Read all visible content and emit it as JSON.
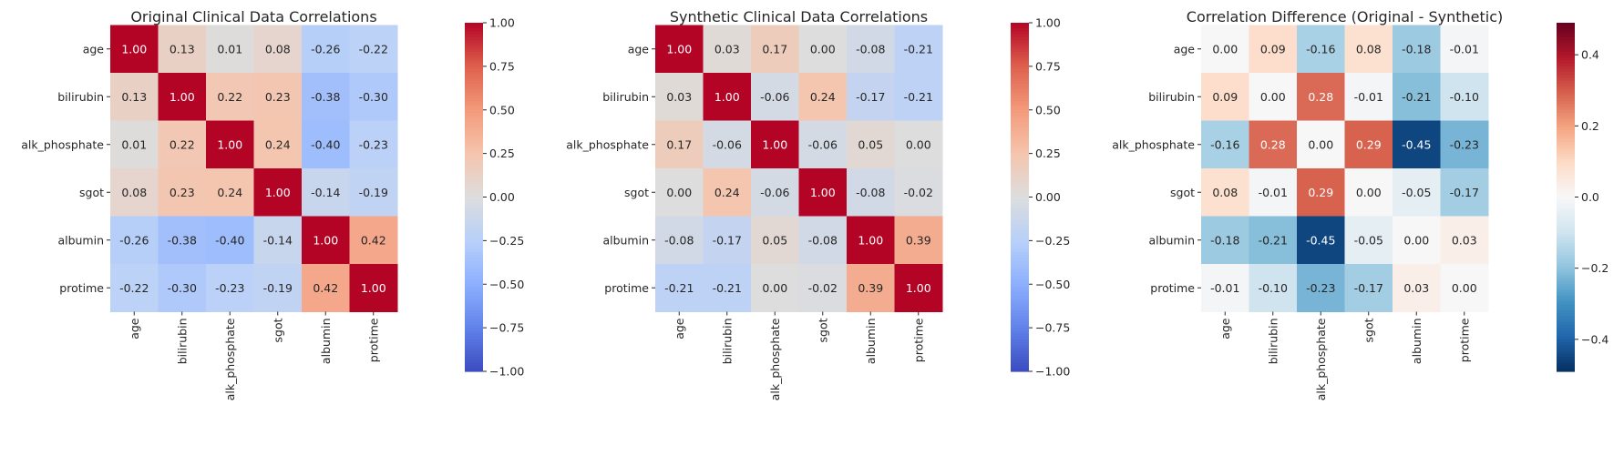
{
  "chart_data": [
    {
      "type": "heatmap",
      "title": "Original Clinical Data Correlations",
      "xlabel": "",
      "ylabel": "",
      "row_labels": [
        "age",
        "bilirubin",
        "alk_phosphate",
        "sgot",
        "albumin",
        "protime"
      ],
      "col_labels": [
        "age",
        "bilirubin",
        "alk_phosphate",
        "sgot",
        "albumin",
        "protime"
      ],
      "values": [
        [
          1.0,
          0.13,
          0.01,
          0.08,
          -0.26,
          -0.22
        ],
        [
          0.13,
          1.0,
          0.22,
          0.23,
          -0.38,
          -0.3
        ],
        [
          0.01,
          0.22,
          1.0,
          0.24,
          -0.4,
          -0.23
        ],
        [
          0.08,
          0.23,
          0.24,
          1.0,
          -0.14,
          -0.19
        ],
        [
          -0.26,
          -0.38,
          -0.4,
          -0.14,
          1.0,
          0.42
        ],
        [
          -0.22,
          -0.3,
          -0.23,
          -0.19,
          0.42,
          1.0
        ]
      ],
      "colormap": "coolwarm",
      "vmin": -1.0,
      "vmax": 1.0,
      "colorbar_ticks": [
        "1.00",
        "0.75",
        "0.50",
        "0.25",
        "0.00",
        "−0.25",
        "−0.50",
        "−0.75",
        "−1.00"
      ],
      "colorbar_tick_values": [
        1.0,
        0.75,
        0.5,
        0.25,
        0.0,
        -0.25,
        -0.5,
        -0.75,
        -1.0
      ]
    },
    {
      "type": "heatmap",
      "title": "Synthetic Clinical Data Correlations",
      "xlabel": "",
      "ylabel": "",
      "row_labels": [
        "age",
        "bilirubin",
        "alk_phosphate",
        "sgot",
        "albumin",
        "protime"
      ],
      "col_labels": [
        "age",
        "bilirubin",
        "alk_phosphate",
        "sgot",
        "albumin",
        "protime"
      ],
      "values": [
        [
          1.0,
          0.03,
          0.17,
          0.0,
          -0.08,
          -0.21
        ],
        [
          0.03,
          1.0,
          -0.06,
          0.24,
          -0.17,
          -0.21
        ],
        [
          0.17,
          -0.06,
          1.0,
          -0.06,
          0.05,
          0.0
        ],
        [
          0.0,
          0.24,
          -0.06,
          1.0,
          -0.08,
          -0.02
        ],
        [
          -0.08,
          -0.17,
          0.05,
          -0.08,
          1.0,
          0.39
        ],
        [
          -0.21,
          -0.21,
          0.0,
          -0.02,
          0.39,
          1.0
        ]
      ],
      "colormap": "coolwarm",
      "vmin": -1.0,
      "vmax": 1.0,
      "colorbar_ticks": [
        "1.00",
        "0.75",
        "0.50",
        "0.25",
        "0.00",
        "−0.25",
        "−0.50",
        "−0.75",
        "−1.00"
      ],
      "colorbar_tick_values": [
        1.0,
        0.75,
        0.5,
        0.25,
        0.0,
        -0.25,
        -0.5,
        -0.75,
        -1.0
      ]
    },
    {
      "type": "heatmap",
      "title": "Correlation Difference (Original - Synthetic)",
      "xlabel": "",
      "ylabel": "",
      "row_labels": [
        "age",
        "bilirubin",
        "alk_phosphate",
        "sgot",
        "albumin",
        "protime"
      ],
      "col_labels": [
        "age",
        "bilirubin",
        "alk_phosphate",
        "sgot",
        "albumin",
        "protime"
      ],
      "values": [
        [
          0.0,
          0.09,
          -0.16,
          0.08,
          -0.18,
          -0.01
        ],
        [
          0.09,
          0.0,
          0.28,
          -0.01,
          -0.21,
          -0.1
        ],
        [
          -0.16,
          0.28,
          0.0,
          0.29,
          -0.45,
          -0.23
        ],
        [
          0.08,
          -0.01,
          0.29,
          0.0,
          -0.05,
          -0.17
        ],
        [
          -0.18,
          -0.21,
          -0.45,
          -0.05,
          0.0,
          0.03
        ],
        [
          -0.01,
          -0.1,
          -0.23,
          -0.17,
          0.03,
          0.0
        ]
      ],
      "colormap": "RdBu_r",
      "vmin": -0.49,
      "vmax": 0.49,
      "colorbar_ticks": [
        "0.4",
        "0.2",
        "0.0",
        "−0.2",
        "−0.4"
      ],
      "colorbar_tick_values": [
        0.4,
        0.2,
        0.0,
        -0.2,
        -0.4
      ]
    }
  ]
}
